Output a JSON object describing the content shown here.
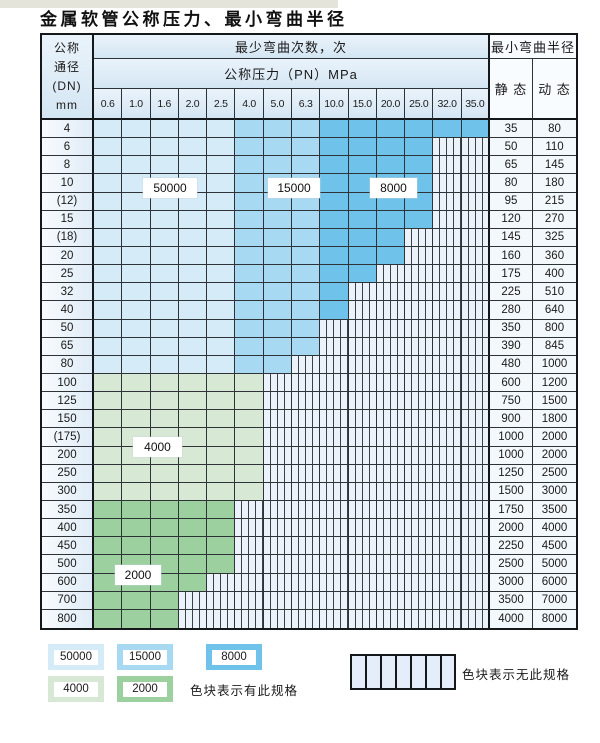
{
  "title": "金属软管公称压力、最小弯曲半径",
  "table": {
    "dn_header_lines": [
      "公称",
      "通径",
      "(DN)",
      "mm"
    ],
    "cycles_header": "最少弯曲次数，次",
    "pressure_header": "公称压力（PN）MPa",
    "radius_header": "最小弯曲半径",
    "static_header": "静 态",
    "dynamic_header": "动 态",
    "pressure_columns": [
      "0.6",
      "1.0",
      "1.6",
      "2.0",
      "2.5",
      "4.0",
      "5.0",
      "6.3",
      "10.0",
      "15.0",
      "20.0",
      "25.0",
      "32.0",
      "35.0"
    ],
    "rows": [
      {
        "dn": "4",
        "colored_cols": 14,
        "zone": "blue",
        "static": "35",
        "dynamic": "80"
      },
      {
        "dn": "6",
        "colored_cols": 12,
        "zone": "blue",
        "static": "50",
        "dynamic": "110"
      },
      {
        "dn": "8",
        "colored_cols": 12,
        "zone": "blue",
        "static": "65",
        "dynamic": "145"
      },
      {
        "dn": "10",
        "colored_cols": 12,
        "zone": "blue",
        "static": "80",
        "dynamic": "180"
      },
      {
        "dn": "(12)",
        "colored_cols": 12,
        "zone": "blue",
        "static": "95",
        "dynamic": "215"
      },
      {
        "dn": "15",
        "colored_cols": 12,
        "zone": "blue",
        "static": "120",
        "dynamic": "270"
      },
      {
        "dn": "(18)",
        "colored_cols": 11,
        "zone": "blue",
        "static": "145",
        "dynamic": "325"
      },
      {
        "dn": "20",
        "colored_cols": 11,
        "zone": "blue",
        "static": "160",
        "dynamic": "360"
      },
      {
        "dn": "25",
        "colored_cols": 10,
        "zone": "blue",
        "static": "175",
        "dynamic": "400"
      },
      {
        "dn": "32",
        "colored_cols": 9,
        "zone": "blue",
        "static": "225",
        "dynamic": "510"
      },
      {
        "dn": "40",
        "colored_cols": 9,
        "zone": "blue",
        "static": "280",
        "dynamic": "640"
      },
      {
        "dn": "50",
        "colored_cols": 8,
        "zone": "blue",
        "static": "350",
        "dynamic": "800"
      },
      {
        "dn": "65",
        "colored_cols": 8,
        "zone": "blue",
        "static": "390",
        "dynamic": "845"
      },
      {
        "dn": "80",
        "colored_cols": 7,
        "zone": "blue",
        "static": "480",
        "dynamic": "1000"
      },
      {
        "dn": "100",
        "colored_cols": 6,
        "zone": "green4000",
        "static": "600",
        "dynamic": "1200"
      },
      {
        "dn": "125",
        "colored_cols": 6,
        "zone": "green4000",
        "static": "750",
        "dynamic": "1500"
      },
      {
        "dn": "150",
        "colored_cols": 6,
        "zone": "green4000",
        "static": "900",
        "dynamic": "1800"
      },
      {
        "dn": "(175)",
        "colored_cols": 6,
        "zone": "green4000",
        "static": "1000",
        "dynamic": "2000"
      },
      {
        "dn": "200",
        "colored_cols": 6,
        "zone": "green4000",
        "static": "1000",
        "dynamic": "2000"
      },
      {
        "dn": "250",
        "colored_cols": 6,
        "zone": "green4000",
        "static": "1250",
        "dynamic": "2500"
      },
      {
        "dn": "300",
        "colored_cols": 6,
        "zone": "green4000",
        "static": "1500",
        "dynamic": "3000"
      },
      {
        "dn": "350",
        "colored_cols": 5,
        "zone": "green2000",
        "static": "1750",
        "dynamic": "3500"
      },
      {
        "dn": "400",
        "colored_cols": 5,
        "zone": "green2000",
        "static": "2000",
        "dynamic": "4000"
      },
      {
        "dn": "450",
        "colored_cols": 5,
        "zone": "green2000",
        "static": "2250",
        "dynamic": "4500"
      },
      {
        "dn": "500",
        "colored_cols": 5,
        "zone": "green2000",
        "static": "2500",
        "dynamic": "5000"
      },
      {
        "dn": "600",
        "colored_cols": 4,
        "zone": "green2000",
        "static": "3000",
        "dynamic": "6000"
      },
      {
        "dn": "700",
        "colored_cols": 3,
        "zone": "green2000",
        "static": "3500",
        "dynamic": "7000"
      },
      {
        "dn": "800",
        "colored_cols": 3,
        "zone": "green2000",
        "static": "4000",
        "dynamic": "8000"
      }
    ]
  },
  "zone_labels": [
    {
      "text": "50000"
    },
    {
      "text": "15000"
    },
    {
      "text": "8000"
    },
    {
      "text": "4000"
    },
    {
      "text": "2000"
    }
  ],
  "legend": {
    "swatches": [
      {
        "label": "50000",
        "color": "#d5ebf8"
      },
      {
        "label": "15000",
        "color": "#a7d9f2"
      },
      {
        "label": "8000",
        "color": "#6fc3ea"
      },
      {
        "label": "4000",
        "color": "#d7e9d4"
      },
      {
        "label": "2000",
        "color": "#9cd19f"
      }
    ],
    "has_spec_text": "色块表示有此规格",
    "no_spec_text": "色块表示无此规格"
  },
  "colors": {
    "c50000": "#d5ebf8",
    "c15000": "#a7d9f2",
    "c8000": "#6fc3ea",
    "c4000": "#d7e9d4",
    "c2000": "#9cd19f"
  }
}
